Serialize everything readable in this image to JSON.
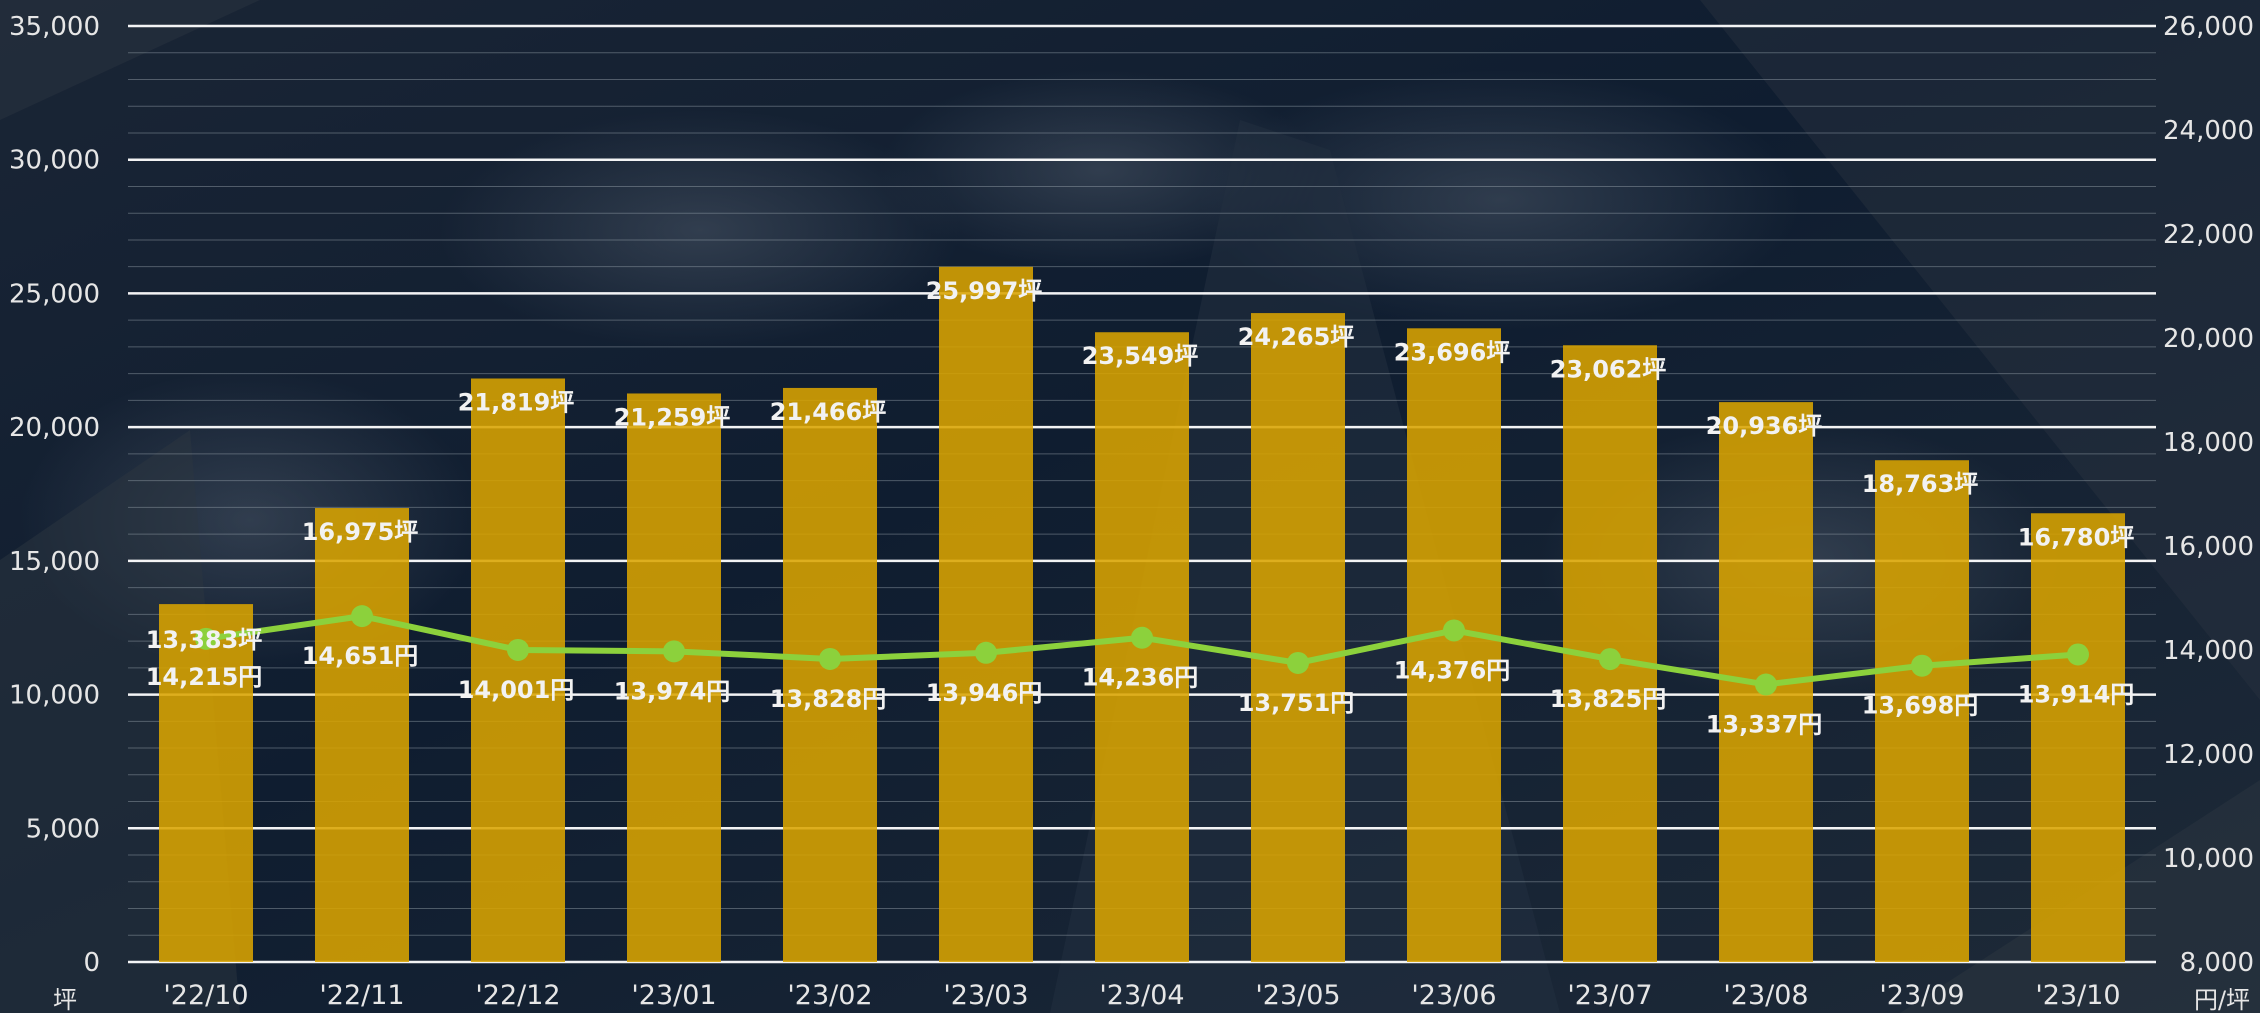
{
  "chart_data": {
    "type": "bar",
    "categories": [
      "'22/10",
      "'22/11",
      "'22/12",
      "'23/01",
      "'23/02",
      "'23/03",
      "'23/04",
      "'23/05",
      "'23/06",
      "'23/07",
      "'23/08",
      "'23/09",
      "'23/10"
    ],
    "series": [
      {
        "type": "bar",
        "axis": "left",
        "values": [
          13383,
          16975,
          21819,
          21259,
          21466,
          25997,
          23549,
          24265,
          23696,
          23062,
          20936,
          18763,
          16780
        ],
        "labels": [
          "13,383坪",
          "16,975坪",
          "21,819坪",
          "21,259坪",
          "21,466坪",
          "25,997坪",
          "23,549坪",
          "24,265坪",
          "23,696坪",
          "23,062坪",
          "20,936坪",
          "18,763坪",
          "16,780坪"
        ],
        "color": "#d9a400"
      },
      {
        "type": "line",
        "axis": "right",
        "values": [
          14215,
          14651,
          14001,
          13974,
          13828,
          13946,
          14236,
          13751,
          14376,
          13825,
          13337,
          13698,
          13914
        ],
        "labels": [
          "14,215円",
          "14,651円",
          "14,001円",
          "13,974円",
          "13,828円",
          "13,946円",
          "14,236円",
          "13,751円",
          "14,376円",
          "13,825円",
          "13,337円",
          "13,698円",
          "13,914円"
        ],
        "color": "#8cd13c"
      }
    ],
    "y_left": {
      "min": 0,
      "max": 35000,
      "ticks": [
        "0",
        "5,000",
        "10,000",
        "15,000",
        "20,000",
        "25,000",
        "30,000",
        "35,000"
      ],
      "unit": "坪"
    },
    "y_right": {
      "min": 8000,
      "max": 26000,
      "ticks": [
        "8,000",
        "10,000",
        "12,000",
        "14,000",
        "16,000",
        "18,000",
        "20,000",
        "22,000",
        "24,000",
        "26,000"
      ],
      "unit": "円/坪"
    },
    "grid": true,
    "legend": "none"
  }
}
